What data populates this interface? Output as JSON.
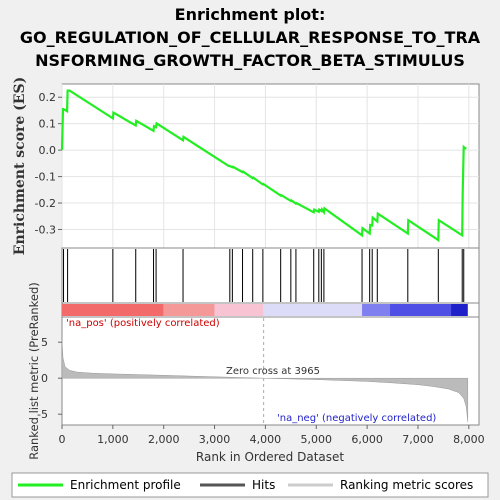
{
  "title_lines": [
    "Enrichment plot:",
    "GO_REGULATION_OF_CELLULAR_RESPONSE_TO_TRA",
    "NSFORMING_GROWTH_FACTOR_BETA_STIMULUS"
  ],
  "colors": {
    "enrichment": "#22ee22",
    "hits": "#000000",
    "ranking": "#bbbbbb",
    "pos_label": "#cc0000",
    "neg_label": "#2222cc"
  },
  "chart_data": [
    {
      "type": "line",
      "title": "Enrichment plot: GO_REGULATION_OF_CELLULAR_RESPONSE_TO_TRANSFORMING_GROWTH_FACTOR_BETA_STIMULUS",
      "ylabel": "Enrichment score (ES)",
      "xlim": [
        0,
        8200
      ],
      "ylim": [
        -0.37,
        0.25
      ],
      "yticks": [
        "0.2",
        "0.1",
        "0.0",
        "-0.1",
        "-0.2",
        "-0.3"
      ],
      "grid": true,
      "series": [
        {
          "name": "Enrichment profile",
          "x": [
            0,
            20,
            30,
            100,
            110,
            150,
            1000,
            1010,
            1450,
            1460,
            1800,
            1810,
            1850,
            1860,
            2380,
            2390,
            3280,
            3300,
            3350,
            3360,
            3550,
            3560,
            3750,
            3760,
            3950,
            3960,
            4300,
            4310,
            4500,
            4510,
            4600,
            4610,
            4950,
            4960,
            5050,
            5060,
            5100,
            5110,
            5150,
            5160,
            5900,
            5910,
            6050,
            6060,
            6100,
            6110,
            6200,
            6210,
            6800,
            6810,
            7400,
            7410,
            7870,
            7880,
            7900,
            7910,
            7950
          ],
          "y": [
            0.0,
            0.155,
            0.155,
            0.147,
            0.225,
            0.225,
            0.12,
            0.142,
            0.093,
            0.111,
            0.073,
            0.091,
            0.087,
            0.101,
            0.037,
            0.05,
            -0.06,
            -0.06,
            -0.065,
            -0.063,
            -0.083,
            -0.081,
            -0.106,
            -0.104,
            -0.13,
            -0.128,
            -0.172,
            -0.17,
            -0.192,
            -0.19,
            -0.202,
            -0.2,
            -0.235,
            -0.225,
            -0.233,
            -0.225,
            -0.23,
            -0.224,
            -0.235,
            -0.22,
            -0.322,
            -0.295,
            -0.315,
            -0.283,
            -0.285,
            -0.255,
            -0.27,
            -0.24,
            -0.315,
            -0.265,
            -0.34,
            -0.265,
            -0.322,
            -0.16,
            0.012,
            0.01,
            0.005
          ]
        }
      ]
    },
    {
      "type": "bar",
      "title": "Hits",
      "hits": [
        30,
        110,
        1000,
        1450,
        1800,
        1850,
        2380,
        3300,
        3350,
        3550,
        3750,
        3950,
        4300,
        4500,
        4600,
        4950,
        5050,
        5100,
        5150,
        5900,
        6050,
        6100,
        6200,
        6800,
        7400,
        7870,
        7900
      ]
    },
    {
      "type": "area",
      "title": "Ranked list metric (PreRanked)",
      "ylabel": "Ranked list metric (PreRanked)",
      "xlabel": "Rank in Ordered Dataset",
      "xlim": [
        0,
        8200
      ],
      "ylim": [
        -6.5,
        8.5
      ],
      "xticks": [
        "0",
        "1,000",
        "2,000",
        "3,000",
        "4,000",
        "5,000",
        "6,000",
        "7,000",
        "8,000"
      ],
      "yticks": [
        "5",
        "0",
        "-5"
      ],
      "x": [
        0,
        20,
        60,
        150,
        300,
        600,
        1000,
        2000,
        3000,
        3965,
        5000,
        6000,
        6500,
        7000,
        7300,
        7600,
        7800,
        7900,
        7950,
        7980
      ],
      "values": [
        5.3,
        2.8,
        1.6,
        1.1,
        0.85,
        0.7,
        0.6,
        0.4,
        0.2,
        0.0,
        -0.2,
        -0.45,
        -0.65,
        -0.9,
        -1.15,
        -1.5,
        -2.0,
        -2.8,
        -4.0,
        -6.1
      ],
      "annotations": [
        "'na_pos' (positively correlated)",
        "Zero cross at 3965",
        "'na_neg' (negatively correlated)"
      ]
    }
  ],
  "labels": {
    "es_ylabel": "Enrichment score (ES)",
    "rank_ylabel": "Ranked list metric (PreRanked)",
    "xlabel": "Rank in Ordered Dataset",
    "pos_label": "'na_pos' (positively correlated)",
    "neg_label": "'na_neg' (negatively correlated)",
    "zero_cross": "Zero cross at 3965"
  },
  "legend": [
    {
      "label": "Enrichment profile",
      "color": "#22ee22"
    },
    {
      "label": "Hits",
      "color": "#000000"
    },
    {
      "label": "Ranking metric scores",
      "color": "#bbbbbb"
    }
  ]
}
